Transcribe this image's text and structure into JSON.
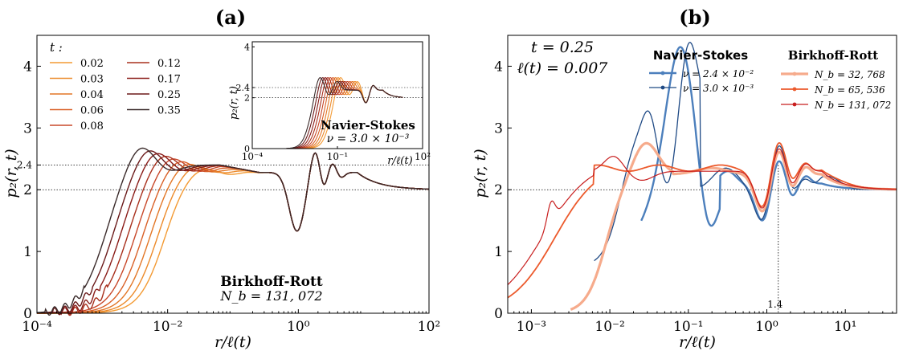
{
  "colors": {
    "t_002": "#f39a33",
    "t_003": "#ec8a2a",
    "t_004": "#e27626",
    "t_006": "#d96027",
    "t_008": "#c8482a",
    "t_012": "#a8301d",
    "t_017": "#8a1c18",
    "t_025": "#6b1a1a",
    "t_035": "#3a2a2a",
    "ns_24": "#4c7fbc",
    "ns_30": "#1f4a85",
    "br_32768": "#f6ab8c",
    "br_65536": "#ec5a2c",
    "br_131072": "#c81e1e",
    "guide": "#000000"
  },
  "chart_data": [
    {
      "id": "a",
      "type": "line",
      "panel_label": "(a)",
      "xlabel": "r/ℓ(t)",
      "ylabel": "p₂(r, t)",
      "xscale": "log",
      "xlim": [
        0.0001,
        100
      ],
      "ylim": [
        0,
        4.5
      ],
      "x_ticks": [
        "10⁻⁴",
        "10⁻²",
        "10⁰",
        "10²"
      ],
      "y_ticks": [
        "0",
        "1",
        "2",
        "2.4",
        "3",
        "4"
      ],
      "hlines": [
        2.0,
        2.4
      ],
      "legend_title": "t :",
      "legend_placement": "top-left",
      "series": [
        {
          "name": "0.02",
          "t": 0.02,
          "color_key": "t_002"
        },
        {
          "name": "0.03",
          "t": 0.03,
          "color_key": "t_003"
        },
        {
          "name": "0.04",
          "t": 0.04,
          "color_key": "t_004"
        },
        {
          "name": "0.06",
          "t": 0.06,
          "color_key": "t_006"
        },
        {
          "name": "0.08",
          "t": 0.08,
          "color_key": "t_008"
        },
        {
          "name": "0.12",
          "t": 0.12,
          "color_key": "t_012"
        },
        {
          "name": "0.17",
          "t": 0.17,
          "color_key": "t_017"
        },
        {
          "name": "0.25",
          "t": 0.25,
          "color_key": "t_025"
        },
        {
          "name": "0.35",
          "t": 0.35,
          "color_key": "t_035"
        }
      ],
      "annotation_title": "Birkhoff-Rott",
      "annotation_sub": "N_b = 131, 072",
      "inset": {
        "title": "Navier-Stokes",
        "subtitle": "ν = 3.0 × 10⁻³",
        "xlabel": "r/ℓ(t)",
        "ylabel": "p₂(r, t)",
        "xscale": "log",
        "xlim": [
          0.0001,
          100
        ],
        "ylim": [
          0,
          4.2
        ],
        "x_ticks": [
          "10⁻⁴",
          "10⁻¹",
          "10²"
        ],
        "y_ticks": [
          "0",
          "2",
          "2.4",
          "4"
        ],
        "hlines": [
          2.0,
          2.4
        ]
      }
    },
    {
      "id": "b",
      "type": "line",
      "panel_label": "(b)",
      "xlabel": "r/ℓ(t)",
      "ylabel": "p₂(r, t)",
      "xscale": "log",
      "xlim": [
        0.0005,
        45
      ],
      "ylim": [
        0,
        4.5
      ],
      "x_ticks": [
        "10⁻³",
        "10⁻²",
        "10⁻¹",
        "10⁰",
        "10¹"
      ],
      "y_ticks": [
        "0",
        "1",
        "2",
        "3",
        "4"
      ],
      "hlines": [
        2.0
      ],
      "vline": {
        "x": 1.4,
        "label": "1.4"
      },
      "info_line1": "t = 0.25",
      "info_line2": "ℓ(t) = 0.007",
      "legend_ns_title": "Navier-Stokes",
      "legend_br_title": "Birkhoff-Rott",
      "series": [
        {
          "name": "ν = 2.4 × 10⁻²",
          "color_key": "ns_24",
          "group": "Navier-Stokes"
        },
        {
          "name": "ν = 3.0 × 10⁻³",
          "color_key": "ns_30",
          "group": "Navier-Stokes"
        },
        {
          "name": "N_b = 32, 768",
          "color_key": "br_32768",
          "group": "Birkhoff-Rott"
        },
        {
          "name": "N_b = 65, 536",
          "color_key": "br_65536",
          "group": "Birkhoff-Rott"
        },
        {
          "name": "N_b = 131, 072",
          "color_key": "br_131072",
          "group": "Birkhoff-Rott"
        }
      ]
    }
  ]
}
